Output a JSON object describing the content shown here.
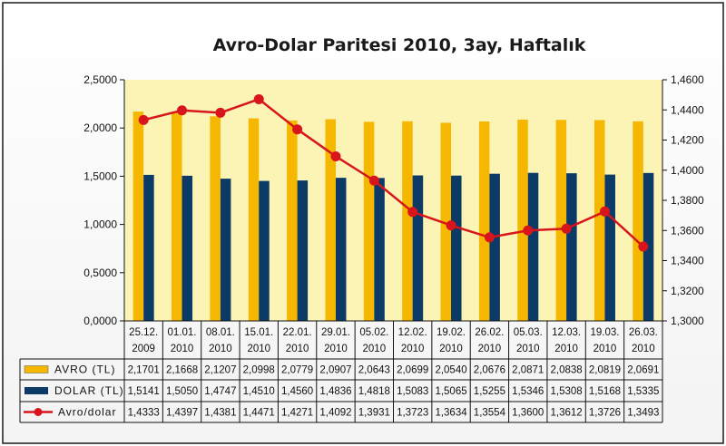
{
  "chart_data": {
    "type": "bar",
    "title": "Avro-Dolar Paritesi 2010, 3ay, Haftalık",
    "categories": [
      [
        "25.12.",
        "2009"
      ],
      [
        "01.01.",
        "2010"
      ],
      [
        "08.01.",
        "2010"
      ],
      [
        "15.01.",
        "2010"
      ],
      [
        "22.01.",
        "2010"
      ],
      [
        "29.01.",
        "2010"
      ],
      [
        "05.02.",
        "2010"
      ],
      [
        "12.02.",
        "2010"
      ],
      [
        "19.02.",
        "2010"
      ],
      [
        "26.02.",
        "2010"
      ],
      [
        "05.03.",
        "2010"
      ],
      [
        "12.03.",
        "2010"
      ],
      [
        "19.03.",
        "2010"
      ],
      [
        "26.03.",
        "2010"
      ]
    ],
    "series": [
      {
        "name": "AVRO (TL)",
        "type": "bar",
        "axis": "left",
        "color": "#f5b700",
        "values": [
          2.1701,
          2.1668,
          2.1207,
          2.0998,
          2.0779,
          2.0907,
          2.0643,
          2.0699,
          2.054,
          2.0676,
          2.0871,
          2.0838,
          2.0819,
          2.0691
        ],
        "labels": [
          "2,1701",
          "2,1668",
          "2,1207",
          "2,0998",
          "2,0779",
          "2,0907",
          "2,0643",
          "2,0699",
          "2,0540",
          "2,0676",
          "2,0871",
          "2,0838",
          "2,0819",
          "2,0691"
        ]
      },
      {
        "name": "DOLAR (TL)",
        "type": "bar",
        "axis": "left",
        "color": "#0b3a66",
        "values": [
          1.5141,
          1.505,
          1.4747,
          1.451,
          1.456,
          1.4836,
          1.4818,
          1.5083,
          1.5065,
          1.5255,
          1.5346,
          1.5308,
          1.5168,
          1.5335
        ],
        "labels": [
          "1,5141",
          "1,5050",
          "1,4747",
          "1,4510",
          "1,4560",
          "1,4836",
          "1,4818",
          "1,5083",
          "1,5065",
          "1,5255",
          "1,5346",
          "1,5308",
          "1,5168",
          "1,5335"
        ]
      },
      {
        "name": "Avro/dolar",
        "type": "line",
        "axis": "right",
        "color": "#d8141c",
        "values": [
          1.4333,
          1.4397,
          1.4381,
          1.4471,
          1.4271,
          1.4092,
          1.3931,
          1.3723,
          1.3634,
          1.3554,
          1.36,
          1.3612,
          1.3726,
          1.3493
        ],
        "labels": [
          "1,4333",
          "1,4397",
          "1,4381",
          "1,4471",
          "1,4271",
          "1,4092",
          "1,3931",
          "1,3723",
          "1,3634",
          "1,3554",
          "1,3600",
          "1,3612",
          "1,3726",
          "1,3493"
        ]
      }
    ],
    "ylim": [
      0,
      2.5
    ],
    "y_ticks": [
      "0,0000",
      "0,5000",
      "1,0000",
      "1,5000",
      "2,0000",
      "2,5000"
    ],
    "y2lim": [
      1.3,
      1.46
    ],
    "y2_ticks": [
      "1,3000",
      "1,3200",
      "1,3400",
      "1,3600",
      "1,3800",
      "1,4000",
      "1,4200",
      "1,4400",
      "1,4600"
    ],
    "grid": false,
    "legend": "data-table below chart",
    "plot_background": "#fcf4b4"
  }
}
